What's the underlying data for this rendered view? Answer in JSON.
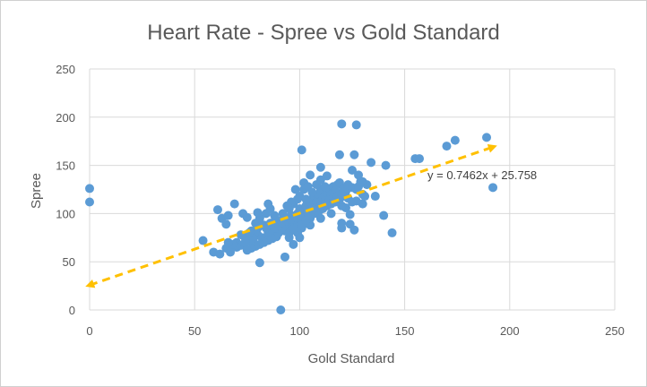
{
  "chart_data": {
    "type": "scatter",
    "title": "Heart Rate - Spree vs Gold Standard",
    "xlabel": "Gold Standard",
    "ylabel": "Spree",
    "xlim": [
      0,
      250
    ],
    "ylim": [
      0,
      250
    ],
    "xticks": [
      0,
      50,
      100,
      150,
      200,
      250
    ],
    "yticks": [
      0,
      50,
      100,
      150,
      200,
      250
    ],
    "grid": true,
    "colors": {
      "points": "#5b9bd5",
      "trendline": "#ffc000",
      "grid": "#d9d9d9",
      "text": "#595959"
    },
    "trendline": {
      "slope": 0.7462,
      "intercept": 25.758,
      "x_range": [
        0,
        192
      ],
      "label": "y = 0.7462x + 25.758"
    },
    "series": [
      {
        "name": "Spree vs Gold Standard",
        "points": [
          [
            0,
            126
          ],
          [
            0,
            112
          ],
          [
            91,
            0
          ],
          [
            93,
            55
          ],
          [
            81,
            49
          ],
          [
            120,
            193
          ],
          [
            127,
            192
          ],
          [
            101,
            166
          ],
          [
            119,
            161
          ],
          [
            126,
            161
          ],
          [
            134,
            153
          ],
          [
            141,
            150
          ],
          [
            155,
            157
          ],
          [
            157,
            157
          ],
          [
            170,
            170
          ],
          [
            174,
            176
          ],
          [
            189,
            179
          ],
          [
            192,
            127
          ],
          [
            144,
            80
          ],
          [
            140,
            98
          ],
          [
            120,
            85
          ],
          [
            120,
            90
          ],
          [
            124,
            89
          ],
          [
            126,
            83
          ],
          [
            130,
            110
          ],
          [
            136,
            118
          ],
          [
            132,
            130
          ],
          [
            128,
            140
          ],
          [
            125,
            145
          ],
          [
            110,
            148
          ],
          [
            105,
            140
          ],
          [
            113,
            139
          ],
          [
            130,
            133
          ],
          [
            131,
            118
          ],
          [
            127,
            113
          ],
          [
            122,
            106
          ],
          [
            124,
            99
          ],
          [
            54,
            72
          ],
          [
            59,
            60
          ],
          [
            62,
            58
          ],
          [
            61,
            104
          ],
          [
            63,
            95
          ],
          [
            66,
            98
          ],
          [
            65,
            89
          ],
          [
            69,
            110
          ],
          [
            65,
            64
          ],
          [
            67,
            60
          ],
          [
            70,
            70
          ],
          [
            72,
            67
          ],
          [
            74,
            75
          ],
          [
            76,
            72
          ],
          [
            78,
            80
          ],
          [
            80,
            78
          ],
          [
            77,
            82
          ],
          [
            79,
            90
          ],
          [
            81,
            95
          ],
          [
            83,
            88
          ],
          [
            84,
            100
          ],
          [
            86,
            105
          ],
          [
            85,
            110
          ],
          [
            88,
            92
          ],
          [
            73,
            100
          ],
          [
            75,
            96
          ],
          [
            80,
            101
          ],
          [
            82,
            75
          ],
          [
            85,
            80
          ],
          [
            87,
            83
          ],
          [
            89,
            86
          ],
          [
            90,
            80
          ],
          [
            92,
            88
          ],
          [
            94,
            90
          ],
          [
            95,
            85
          ],
          [
            97,
            95
          ],
          [
            98,
            92
          ],
          [
            96,
            98
          ],
          [
            99,
            100
          ],
          [
            100,
            105
          ],
          [
            101,
            98
          ],
          [
            102,
            102
          ],
          [
            103,
            108
          ],
          [
            104,
            110
          ],
          [
            105,
            112
          ],
          [
            106,
            115
          ],
          [
            107,
            118
          ],
          [
            108,
            112
          ],
          [
            109,
            120
          ],
          [
            110,
            125
          ],
          [
            111,
            115
          ],
          [
            112,
            118
          ],
          [
            113,
            122
          ],
          [
            114,
            126
          ],
          [
            115,
            120
          ],
          [
            116,
            128
          ],
          [
            117,
            124
          ],
          [
            118,
            130
          ],
          [
            119,
            132
          ],
          [
            121,
            126
          ],
          [
            122,
            123
          ],
          [
            123,
            130
          ],
          [
            125,
            127
          ],
          [
            127,
            125
          ],
          [
            128,
            128
          ],
          [
            129,
            133
          ],
          [
            95,
            105
          ],
          [
            93,
            95
          ],
          [
            91,
            93
          ],
          [
            97,
            110
          ],
          [
            99,
            115
          ],
          [
            100,
            118
          ],
          [
            102,
            125
          ],
          [
            103,
            115
          ],
          [
            98,
            125
          ],
          [
            96,
            112
          ],
          [
            94,
            108
          ],
          [
            92,
            100
          ],
          [
            90,
            92
          ],
          [
            88,
            98
          ],
          [
            86,
            90
          ],
          [
            84,
            85
          ],
          [
            82,
            88
          ],
          [
            80,
            85
          ],
          [
            78,
            74
          ],
          [
            76,
            80
          ],
          [
            74,
            70
          ],
          [
            72,
            78
          ],
          [
            70,
            65
          ],
          [
            68,
            68
          ],
          [
            66,
            70
          ],
          [
            97,
            68
          ],
          [
            95,
            75
          ],
          [
            99,
            80
          ],
          [
            101,
            85
          ],
          [
            103,
            90
          ],
          [
            105,
            95
          ],
          [
            107,
            100
          ],
          [
            109,
            102
          ],
          [
            111,
            105
          ],
          [
            113,
            108
          ],
          [
            115,
            110
          ],
          [
            117,
            112
          ],
          [
            119,
            115
          ],
          [
            121,
            118
          ],
          [
            123,
            116
          ],
          [
            100,
            92
          ],
          [
            102,
            96
          ],
          [
            104,
            100
          ],
          [
            106,
            104
          ],
          [
            108,
            106
          ],
          [
            110,
            108
          ],
          [
            112,
            110
          ],
          [
            114,
            113
          ],
          [
            116,
            116
          ],
          [
            118,
            118
          ],
          [
            120,
            120
          ],
          [
            97,
            87
          ],
          [
            99,
            89
          ],
          [
            101,
            91
          ],
          [
            89,
            76
          ],
          [
            87,
            74
          ],
          [
            85,
            72
          ],
          [
            83,
            70
          ],
          [
            81,
            68
          ],
          [
            79,
            66
          ],
          [
            77,
            64
          ],
          [
            75,
            62
          ],
          [
            102,
            132
          ],
          [
            104,
            128
          ],
          [
            106,
            122
          ],
          [
            108,
            130
          ],
          [
            110,
            135
          ],
          [
            112,
            128
          ],
          [
            100,
            75
          ],
          [
            105,
            88
          ],
          [
            110,
            95
          ],
          [
            115,
            100
          ],
          [
            120,
            108
          ],
          [
            125,
            112
          ],
          [
            130,
            120
          ],
          [
            93,
            82
          ],
          [
            95,
            80
          ],
          [
            97,
            84
          ],
          [
            99,
            86
          ],
          [
            101,
            88
          ],
          [
            103,
            93
          ],
          [
            105,
            98
          ],
          [
            88,
            85
          ],
          [
            90,
            88
          ],
          [
            92,
            90
          ],
          [
            94,
            92
          ],
          [
            96,
            94
          ],
          [
            98,
            96
          ],
          [
            100,
            99
          ]
        ]
      }
    ]
  }
}
